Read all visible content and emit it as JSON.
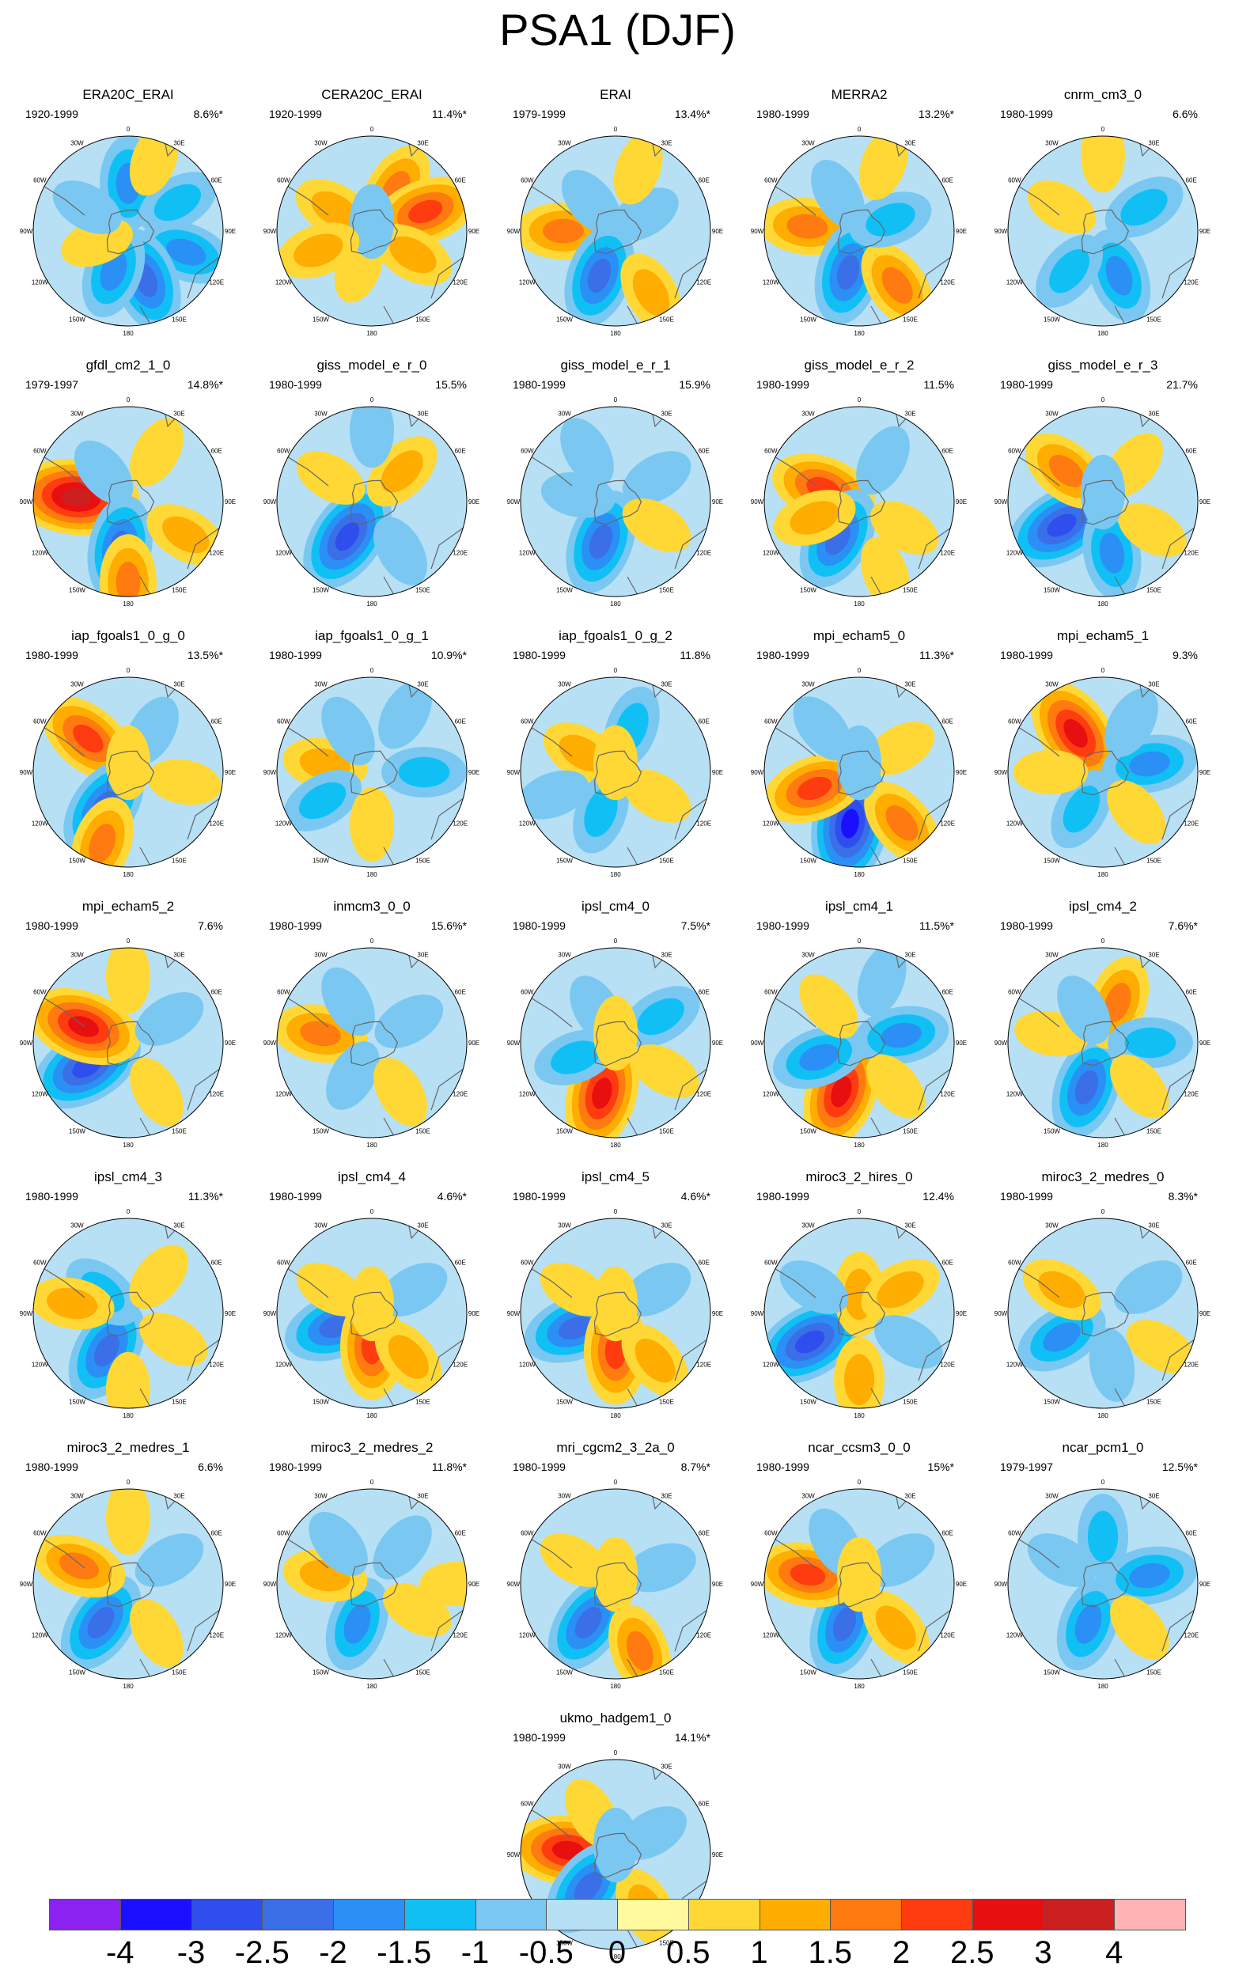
{
  "title": "PSA1 (DJF)",
  "lon_labels": [
    "0",
    "30E",
    "60E",
    "90E",
    "120E",
    "150E",
    "180",
    "150W",
    "120W",
    "90W",
    "60W",
    "30W"
  ],
  "panels": [
    {
      "name": "ERA20C_ERAI",
      "years": "1920-1999",
      "pct": "8.6%*",
      "blobs": [
        [
          0,
          0.5,
          -1.5
        ],
        [
          60,
          0.6,
          -1
        ],
        [
          110,
          0.65,
          -1.5
        ],
        [
          160,
          0.55,
          -2
        ],
        [
          200,
          0.45,
          -1.5
        ],
        [
          250,
          0.35,
          0.5
        ],
        [
          300,
          0.5,
          -0.5
        ],
        [
          20,
          0.8,
          0.5
        ]
      ]
    },
    {
      "name": "CERA20C_ERAI",
      "years": "1920-1999",
      "pct": "11.4%*",
      "blobs": [
        [
          30,
          0.5,
          1.5
        ],
        [
          70,
          0.6,
          2
        ],
        [
          120,
          0.5,
          1
        ],
        [
          300,
          0.45,
          1
        ],
        [
          200,
          0.4,
          0.5
        ],
        [
          0,
          0.1,
          -0.5
        ],
        [
          250,
          0.6,
          1
        ]
      ]
    },
    {
      "name": "ERAI",
      "years": "1979-1999",
      "pct": "13.4%*",
      "blobs": [
        [
          270,
          0.55,
          1.5
        ],
        [
          200,
          0.5,
          -2
        ],
        [
          150,
          0.75,
          1
        ],
        [
          60,
          0.35,
          -0.5
        ],
        [
          320,
          0.4,
          -0.5
        ],
        [
          20,
          0.7,
          0.5
        ]
      ]
    },
    {
      "name": "MERRA2",
      "years": "1980-1999",
      "pct": "13.2%*",
      "blobs": [
        [
          275,
          0.55,
          1.5
        ],
        [
          195,
          0.45,
          -2
        ],
        [
          145,
          0.7,
          1.5
        ],
        [
          70,
          0.35,
          -1
        ],
        [
          330,
          0.45,
          -0.5
        ],
        [
          20,
          0.75,
          0.5
        ]
      ]
    },
    {
      "name": "cnrm_cm3_0",
      "years": "1980-1999",
      "pct": "6.6%",
      "blobs": [
        [
          160,
          0.5,
          -1.5
        ],
        [
          220,
          0.55,
          -1
        ],
        [
          60,
          0.5,
          -1
        ],
        [
          300,
          0.5,
          0.5
        ],
        [
          0,
          0.8,
          0.5
        ]
      ]
    },
    {
      "name": "gfdl_cm2_1_0",
      "years": "1979-1997",
      "pct": "14.8%*",
      "blobs": [
        [
          275,
          0.55,
          3
        ],
        [
          190,
          0.5,
          -2
        ],
        [
          180,
          0.85,
          1.5
        ],
        [
          120,
          0.7,
          1
        ],
        [
          320,
          0.4,
          -0.5
        ],
        [
          30,
          0.6,
          0.5
        ]
      ]
    },
    {
      "name": "giss_model_e_r_0",
      "years": "1980-1999",
      "pct": "15.5%",
      "blobs": [
        [
          215,
          0.45,
          -2.5
        ],
        [
          45,
          0.45,
          1
        ],
        [
          150,
          0.6,
          -0.5
        ],
        [
          300,
          0.5,
          0.5
        ],
        [
          0,
          0.75,
          -0.5
        ]
      ]
    },
    {
      "name": "giss_model_e_r_1",
      "years": "1980-1999",
      "pct": "15.9%",
      "blobs": [
        [
          200,
          0.45,
          -2
        ],
        [
          280,
          0.4,
          -0.5
        ],
        [
          60,
          0.5,
          -0.5
        ],
        [
          120,
          0.5,
          0.5
        ],
        [
          330,
          0.6,
          -0.5
        ]
      ]
    },
    {
      "name": "giss_model_e_r_2",
      "years": "1980-1999",
      "pct": "11.5%",
      "blobs": [
        [
          290,
          0.4,
          2
        ],
        [
          210,
          0.45,
          -2
        ],
        [
          250,
          0.5,
          1
        ],
        [
          120,
          0.55,
          0.5
        ],
        [
          30,
          0.5,
          -0.5
        ],
        [
          160,
          0.8,
          0.5
        ]
      ]
    },
    {
      "name": "giss_model_e_r_3",
      "years": "1980-1999",
      "pct": "21.7%",
      "blobs": [
        [
          240,
          0.5,
          -2.5
        ],
        [
          310,
          0.5,
          1.5
        ],
        [
          170,
          0.55,
          -1.5
        ],
        [
          40,
          0.5,
          0.5
        ],
        [
          120,
          0.6,
          0.5
        ],
        [
          0,
          0.1,
          -0.5
        ]
      ]
    },
    {
      "name": "iap_fgoals1_0_g_0",
      "years": "1980-1999",
      "pct": "13.5%*",
      "blobs": [
        [
          310,
          0.55,
          2
        ],
        [
          215,
          0.45,
          -2
        ],
        [
          200,
          0.8,
          1.5
        ],
        [
          100,
          0.6,
          0.5
        ],
        [
          30,
          0.5,
          -0.5
        ],
        [
          0,
          0.1,
          0.5
        ]
      ]
    },
    {
      "name": "iap_fgoals1_0_g_1",
      "years": "1980-1999",
      "pct": "10.9%*",
      "blobs": [
        [
          280,
          0.5,
          1
        ],
        [
          240,
          0.6,
          -1
        ],
        [
          90,
          0.55,
          -1
        ],
        [
          180,
          0.55,
          0.5
        ],
        [
          330,
          0.5,
          -0.5
        ],
        [
          30,
          0.7,
          -0.5
        ]
      ]
    },
    {
      "name": "iap_fgoals1_0_g_2",
      "years": "1980-1999",
      "pct": "11.8%",
      "blobs": [
        [
          300,
          0.4,
          1
        ],
        [
          20,
          0.5,
          -1
        ],
        [
          200,
          0.45,
          -1
        ],
        [
          120,
          0.5,
          0.5
        ],
        [
          250,
          0.7,
          -0.5
        ],
        [
          0,
          0.1,
          0.5
        ]
      ]
    },
    {
      "name": "mpi_echam5_0",
      "years": "1980-1999",
      "pct": "11.3%*",
      "blobs": [
        [
          190,
          0.55,
          -3
        ],
        [
          250,
          0.5,
          2
        ],
        [
          140,
          0.7,
          1.5
        ],
        [
          320,
          0.6,
          -0.5
        ],
        [
          60,
          0.5,
          0.5
        ],
        [
          0,
          0.1,
          -0.5
        ]
      ]
    },
    {
      "name": "mpi_echam5_1",
      "years": "1980-1999",
      "pct": "9.3%",
      "blobs": [
        [
          325,
          0.5,
          2.5
        ],
        [
          80,
          0.5,
          -1.5
        ],
        [
          210,
          0.45,
          -1
        ],
        [
          140,
          0.55,
          0.5
        ],
        [
          270,
          0.55,
          0.5
        ],
        [
          30,
          0.6,
          -0.5
        ]
      ]
    },
    {
      "name": "mpi_echam5_2",
      "years": "1980-1999",
      "pct": "7.6%",
      "blobs": [
        [
          240,
          0.5,
          -2.5
        ],
        [
          290,
          0.5,
          2.5
        ],
        [
          150,
          0.6,
          0.5
        ],
        [
          60,
          0.5,
          -0.5
        ],
        [
          0,
          0.7,
          0.5
        ]
      ]
    },
    {
      "name": "inmcm3_0_0",
      "years": "1980-1999",
      "pct": "15.6%*",
      "blobs": [
        [
          280,
          0.55,
          1.5
        ],
        [
          210,
          0.4,
          -0.5
        ],
        [
          60,
          0.45,
          -0.5
        ],
        [
          150,
          0.6,
          0.5
        ],
        [
          330,
          0.5,
          -0.5
        ]
      ]
    },
    {
      "name": "ipsl_cm4_0",
      "years": "1980-1999",
      "pct": "7.5%*",
      "blobs": [
        [
          195,
          0.55,
          2.5
        ],
        [
          250,
          0.45,
          -1
        ],
        [
          60,
          0.55,
          -1
        ],
        [
          330,
          0.4,
          -0.5
        ],
        [
          120,
          0.6,
          0.5
        ],
        [
          0,
          0.1,
          0.5
        ]
      ]
    },
    {
      "name": "ipsl_cm4_1",
      "years": "1980-1999",
      "pct": "11.5%*",
      "blobs": [
        [
          200,
          0.55,
          2.5
        ],
        [
          250,
          0.45,
          -1.5
        ],
        [
          80,
          0.45,
          -1.5
        ],
        [
          320,
          0.5,
          0.5
        ],
        [
          140,
          0.6,
          0.5
        ],
        [
          20,
          0.7,
          -0.5
        ]
      ]
    },
    {
      "name": "ipsl_cm4_2",
      "years": "1980-1999",
      "pct": "7.6%*",
      "blobs": [
        [
          200,
          0.5,
          -2
        ],
        [
          20,
          0.45,
          1.5
        ],
        [
          90,
          0.5,
          -1
        ],
        [
          280,
          0.55,
          0.5
        ],
        [
          140,
          0.6,
          0.5
        ],
        [
          330,
          0.4,
          -0.5
        ]
      ]
    },
    {
      "name": "ipsl_cm4_3",
      "years": "1980-1999",
      "pct": "11.3%*",
      "blobs": [
        [
          210,
          0.45,
          -2
        ],
        [
          310,
          0.35,
          -1
        ],
        [
          280,
          0.6,
          1
        ],
        [
          120,
          0.55,
          0.5
        ],
        [
          40,
          0.5,
          0.5
        ],
        [
          180,
          0.8,
          0.5
        ]
      ]
    },
    {
      "name": "ipsl_cm4_4",
      "years": "1980-1999",
      "pct": "4.6%*",
      "blobs": [
        [
          250,
          0.4,
          -2
        ],
        [
          180,
          0.35,
          2
        ],
        [
          140,
          0.6,
          1
        ],
        [
          300,
          0.5,
          0.5
        ],
        [
          60,
          0.5,
          -0.5
        ],
        [
          0,
          0.1,
          0.5
        ]
      ]
    },
    {
      "name": "ipsl_cm4_5",
      "years": "1980-1999",
      "pct": "4.6%*",
      "blobs": [
        [
          250,
          0.45,
          -2
        ],
        [
          180,
          0.4,
          2
        ],
        [
          140,
          0.65,
          1
        ],
        [
          300,
          0.5,
          0.5
        ],
        [
          60,
          0.5,
          -0.5
        ],
        [
          0,
          0.1,
          0.5
        ]
      ]
    },
    {
      "name": "miroc3_2_hires_0",
      "years": "1980-1999",
      "pct": "12.4%",
      "blobs": [
        [
          240,
          0.6,
          -2.5
        ],
        [
          0,
          0.2,
          1
        ],
        [
          60,
          0.5,
          1
        ],
        [
          180,
          0.7,
          1
        ],
        [
          300,
          0.55,
          -0.5
        ],
        [
          120,
          0.6,
          -0.5
        ]
      ]
    },
    {
      "name": "miroc3_2_medres_0",
      "years": "1980-1999",
      "pct": "8.3%*",
      "blobs": [
        [
          240,
          0.5,
          -1.5
        ],
        [
          300,
          0.5,
          1
        ],
        [
          170,
          0.55,
          -0.5
        ],
        [
          60,
          0.55,
          -0.5
        ],
        [
          120,
          0.7,
          0.5
        ]
      ]
    },
    {
      "name": "miroc3_2_medres_1",
      "years": "1980-1999",
      "pct": "6.6%",
      "blobs": [
        [
          215,
          0.5,
          -2
        ],
        [
          290,
          0.55,
          1.5
        ],
        [
          150,
          0.6,
          0.5
        ],
        [
          60,
          0.5,
          -0.5
        ],
        [
          0,
          0.7,
          0.5
        ]
      ]
    },
    {
      "name": "miroc3_2_medres_2",
      "years": "1980-1999",
      "pct": "11.8%*",
      "blobs": [
        [
          200,
          0.45,
          -1.5
        ],
        [
          280,
          0.5,
          1
        ],
        [
          120,
          0.55,
          0.5
        ],
        [
          40,
          0.5,
          -0.5
        ],
        [
          90,
          0.9,
          0.5
        ],
        [
          320,
          0.55,
          -0.5
        ]
      ]
    },
    {
      "name": "mri_cgcm2_3_2a_0",
      "years": "1980-1999",
      "pct": "8.7%*",
      "blobs": [
        [
          215,
          0.5,
          -2
        ],
        [
          160,
          0.75,
          1.5
        ],
        [
          300,
          0.5,
          0.5
        ],
        [
          70,
          0.5,
          -0.5
        ],
        [
          0,
          0.1,
          0.5
        ]
      ]
    },
    {
      "name": "ncar_ccsm3_0_0",
      "years": "1980-1999",
      "pct": "15%*",
      "blobs": [
        [
          200,
          0.45,
          -2
        ],
        [
          280,
          0.55,
          2
        ],
        [
          140,
          0.6,
          1
        ],
        [
          330,
          0.5,
          -0.5
        ],
        [
          60,
          0.5,
          -0.5
        ],
        [
          0,
          0.1,
          0.5
        ]
      ]
    },
    {
      "name": "ncar_pcm1_0",
      "years": "1979-1997",
      "pct": "12.5%*",
      "blobs": [
        [
          200,
          0.45,
          -1.5
        ],
        [
          80,
          0.5,
          -1.5
        ],
        [
          0,
          0.5,
          -1
        ],
        [
          300,
          0.5,
          -0.5
        ],
        [
          140,
          0.6,
          0.5
        ]
      ]
    },
    {
      "name": "ukmo_hadgem1_0",
      "years": "1980-1999",
      "pct": "14.1%*",
      "blobs": [
        [
          275,
          0.5,
          2.5
        ],
        [
          220,
          0.45,
          -2
        ],
        [
          150,
          0.65,
          1
        ],
        [
          60,
          0.45,
          -0.5
        ],
        [
          330,
          0.5,
          0.5
        ],
        [
          0,
          0.1,
          -0.5
        ]
      ]
    }
  ],
  "colorbar": {
    "colors": [
      "#8b22f2",
      "#1a10ff",
      "#2e4fee",
      "#3a6fe8",
      "#2a90f5",
      "#10c0f5",
      "#7ac8f2",
      "#b7e0f5",
      "#fffa9e",
      "#ffd835",
      "#ffad00",
      "#ff7a10",
      "#ff3c10",
      "#e80f10",
      "#cc2020",
      "#ffb4b4"
    ],
    "labels": [
      "-4",
      "-3",
      "-2.5",
      "-2",
      "-1.5",
      "-1",
      "-0.5",
      "0",
      "0.5",
      "1",
      "1.5",
      "2",
      "2.5",
      "3",
      "4"
    ]
  }
}
